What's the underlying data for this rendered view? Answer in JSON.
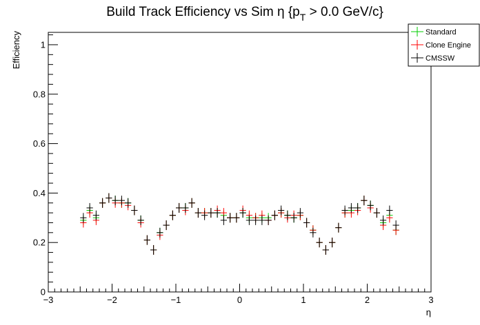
{
  "chart_data": {
    "type": "scatter",
    "title": "Build Track Efficiency vs Sim η {p",
    "title_sub": "T",
    "title_suffix": " > 0.0 GeV/c}",
    "xlabel": "η",
    "ylabel": "Efficiency",
    "xlim": [
      -3,
      3
    ],
    "ylim": [
      0,
      1.05
    ],
    "x_ticks": [
      -3,
      -2,
      -1,
      0,
      1,
      2,
      3
    ],
    "x_tick_labels": [
      "−3",
      "−2",
      "−1",
      "0",
      "1",
      "2",
      "3"
    ],
    "y_ticks": [
      0,
      0.2,
      0.4,
      0.6,
      0.8,
      1
    ],
    "y_tick_labels": [
      "0",
      "0.2",
      "0.4",
      "0.6",
      "0.8",
      "1"
    ],
    "bin_half_width": 0.05,
    "legend_position": "top-right",
    "series": [
      {
        "name": "Standard",
        "color": "#00cc00",
        "x": [
          -2.45,
          -2.35,
          -2.25,
          -2.15,
          -2.05,
          -1.95,
          -1.85,
          -1.75,
          -1.65,
          -1.55,
          -1.45,
          -1.35,
          -1.25,
          -1.15,
          -1.05,
          -0.95,
          -0.85,
          -0.75,
          -0.65,
          -0.55,
          -0.45,
          -0.35,
          -0.25,
          -0.15,
          -0.05,
          0.05,
          0.15,
          0.25,
          0.35,
          0.45,
          0.55,
          0.65,
          0.75,
          0.85,
          0.95,
          1.05,
          1.15,
          1.25,
          1.35,
          1.45,
          1.55,
          1.65,
          1.75,
          1.85,
          1.95,
          2.05,
          2.15,
          2.25,
          2.35,
          2.45
        ],
        "y": [
          0.29,
          0.33,
          0.3,
          0.36,
          0.38,
          0.37,
          0.36,
          0.36,
          0.33,
          0.29,
          0.21,
          0.17,
          0.24,
          0.27,
          0.31,
          0.34,
          0.34,
          0.36,
          0.32,
          0.32,
          0.32,
          0.32,
          0.31,
          0.3,
          0.3,
          0.32,
          0.3,
          0.3,
          0.3,
          0.3,
          0.31,
          0.32,
          0.31,
          0.3,
          0.31,
          0.28,
          0.25,
          0.2,
          0.17,
          0.2,
          0.26,
          0.32,
          0.33,
          0.34,
          0.37,
          0.35,
          0.32,
          0.28,
          0.31,
          0.25
        ]
      },
      {
        "name": "Clone Engine",
        "color": "#ff0000",
        "x": [
          -2.45,
          -2.35,
          -2.25,
          -2.15,
          -2.05,
          -1.95,
          -1.85,
          -1.75,
          -1.65,
          -1.55,
          -1.45,
          -1.35,
          -1.25,
          -1.15,
          -1.05,
          -0.95,
          -0.85,
          -0.75,
          -0.65,
          -0.55,
          -0.45,
          -0.35,
          -0.25,
          -0.15,
          -0.05,
          0.05,
          0.15,
          0.25,
          0.35,
          0.45,
          0.55,
          0.65,
          0.75,
          0.85,
          0.95,
          1.05,
          1.15,
          1.25,
          1.35,
          1.45,
          1.55,
          1.65,
          1.75,
          1.85,
          1.95,
          2.05,
          2.15,
          2.25,
          2.35,
          2.45
        ],
        "y": [
          0.28,
          0.32,
          0.29,
          0.36,
          0.38,
          0.36,
          0.36,
          0.35,
          0.33,
          0.28,
          0.21,
          0.17,
          0.23,
          0.27,
          0.31,
          0.34,
          0.33,
          0.36,
          0.32,
          0.32,
          0.32,
          0.33,
          0.32,
          0.3,
          0.3,
          0.33,
          0.31,
          0.3,
          0.31,
          0.29,
          0.31,
          0.32,
          0.3,
          0.31,
          0.31,
          0.28,
          0.25,
          0.2,
          0.17,
          0.2,
          0.26,
          0.32,
          0.32,
          0.33,
          0.37,
          0.34,
          0.32,
          0.27,
          0.3,
          0.25
        ]
      },
      {
        "name": "CMSSW",
        "color": "#000000",
        "x": [
          -2.45,
          -2.35,
          -2.25,
          -2.15,
          -2.05,
          -1.95,
          -1.85,
          -1.75,
          -1.65,
          -1.55,
          -1.45,
          -1.35,
          -1.25,
          -1.15,
          -1.05,
          -0.95,
          -0.85,
          -0.75,
          -0.65,
          -0.55,
          -0.45,
          -0.35,
          -0.25,
          -0.15,
          -0.05,
          0.05,
          0.15,
          0.25,
          0.35,
          0.45,
          0.55,
          0.65,
          0.75,
          0.85,
          0.95,
          1.05,
          1.15,
          1.25,
          1.35,
          1.45,
          1.55,
          1.65,
          1.75,
          1.85,
          1.95,
          2.05,
          2.15,
          2.25,
          2.35,
          2.45
        ],
        "y": [
          0.3,
          0.34,
          0.31,
          0.36,
          0.38,
          0.37,
          0.37,
          0.36,
          0.33,
          0.29,
          0.21,
          0.17,
          0.24,
          0.27,
          0.31,
          0.34,
          0.34,
          0.36,
          0.32,
          0.31,
          0.32,
          0.32,
          0.29,
          0.3,
          0.3,
          0.32,
          0.29,
          0.29,
          0.29,
          0.29,
          0.31,
          0.33,
          0.31,
          0.3,
          0.32,
          0.28,
          0.24,
          0.2,
          0.17,
          0.2,
          0.26,
          0.33,
          0.34,
          0.34,
          0.37,
          0.35,
          0.32,
          0.29,
          0.33,
          0.27
        ]
      }
    ]
  }
}
